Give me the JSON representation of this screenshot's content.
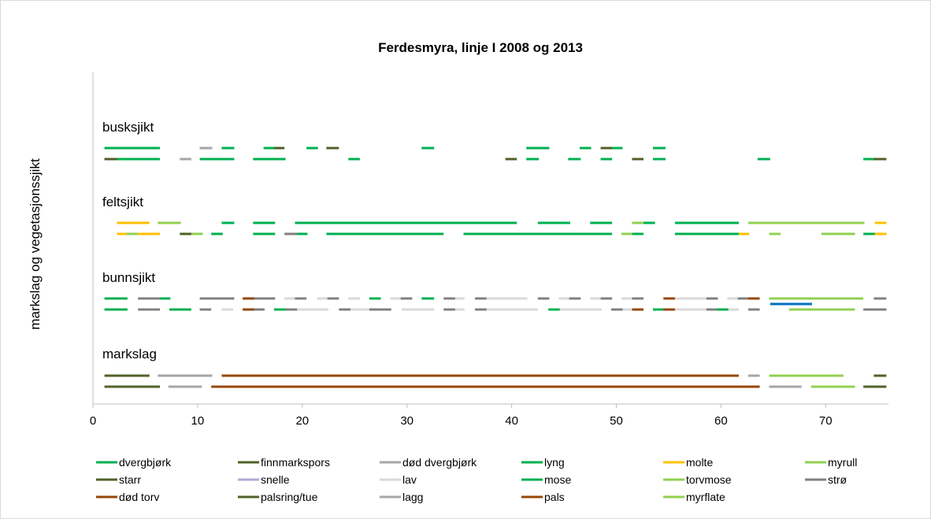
{
  "chart_data": {
    "type": "segments",
    "title": "Ferdesmyra, linje I 2008 og 2013",
    "ylabel": "markslag og vegetasjonssjikt",
    "groups": [
      "busksjikt",
      "feltsjikt",
      "bunnsjikt",
      "markslag"
    ],
    "xlim": [
      0,
      76
    ],
    "xticks": [
      0,
      10,
      20,
      30,
      40,
      50,
      60,
      70
    ],
    "series": [
      {
        "name": "dvergbjørk",
        "color": "#00b050",
        "segments": [
          [
            0,
            0,
            1.1,
            6.4
          ],
          [
            0,
            0,
            12.3,
            13.5
          ],
          [
            0,
            0,
            16.3,
            17.4
          ],
          [
            0,
            0,
            20.4,
            21.5
          ],
          [
            0,
            0,
            31.4,
            32.6
          ],
          [
            0,
            0,
            41.4,
            43.6
          ],
          [
            0,
            0,
            46.5,
            47.6
          ],
          [
            0,
            0,
            49.5,
            50.6
          ],
          [
            0,
            0,
            53.5,
            54.7
          ],
          [
            0,
            1,
            1.1,
            6.4
          ],
          [
            0,
            1,
            10.2,
            13.5
          ],
          [
            0,
            1,
            15.3,
            18.4
          ],
          [
            0,
            1,
            24.4,
            25.5
          ],
          [
            0,
            1,
            41.4,
            42.6
          ],
          [
            0,
            1,
            45.4,
            46.6
          ],
          [
            0,
            1,
            48.5,
            49.6
          ],
          [
            0,
            1,
            53.5,
            54.7
          ],
          [
            0,
            1,
            63.5,
            64.7
          ],
          [
            0,
            1,
            73.6,
            74.8
          ]
        ]
      },
      {
        "name": "finnmarkspors",
        "color": "#4f6228",
        "segments": [
          [
            0,
            0,
            17.3,
            18.3
          ],
          [
            0,
            0,
            22.3,
            23.5
          ],
          [
            0,
            0,
            48.5,
            49.6
          ],
          [
            0,
            1,
            1.1,
            2.3
          ],
          [
            0,
            1,
            39.4,
            40.5
          ],
          [
            0,
            1,
            51.5,
            52.6
          ],
          [
            0,
            1,
            74.6,
            75.8
          ]
        ]
      },
      {
        "name": "død dvergbjørk",
        "color": "#a6a6a6",
        "segments": [
          [
            0,
            0,
            10.2,
            11.4
          ],
          [
            0,
            1,
            8.3,
            9.4
          ]
        ]
      },
      {
        "name": "lyng",
        "color": "#00b050",
        "segments": [
          [
            1,
            0,
            12.3,
            13.5
          ],
          [
            1,
            0,
            15.3,
            17.4
          ],
          [
            1,
            0,
            19.3,
            40.5
          ],
          [
            1,
            0,
            42.5,
            45.6
          ],
          [
            1,
            0,
            47.5,
            49.6
          ],
          [
            1,
            0,
            52.6,
            53.7
          ],
          [
            1,
            0,
            55.6,
            61.7
          ],
          [
            1,
            1,
            11.3,
            12.4
          ],
          [
            1,
            1,
            15.3,
            17.4
          ],
          [
            1,
            1,
            19.3,
            20.5
          ],
          [
            1,
            1,
            22.3,
            33.5
          ],
          [
            1,
            1,
            35.4,
            49.6
          ],
          [
            1,
            1,
            51.5,
            52.6
          ],
          [
            1,
            1,
            55.6,
            61.7
          ],
          [
            1,
            1,
            73.6,
            75.8
          ]
        ]
      },
      {
        "name": "molte",
        "color": "#ffc000",
        "segments": [
          [
            1,
            0,
            2.3,
            5.4
          ],
          [
            1,
            0,
            74.7,
            75.8
          ],
          [
            1,
            1,
            2.3,
            6.4
          ],
          [
            1,
            1,
            61.7,
            62.7
          ],
          [
            1,
            1,
            74.7,
            75.8
          ]
        ]
      },
      {
        "name": "myrull",
        "color": "#92d050",
        "segments": [
          [
            1,
            0,
            6.2,
            8.4
          ],
          [
            1,
            0,
            51.5,
            52.6
          ],
          [
            1,
            0,
            62.6,
            73.7
          ],
          [
            1,
            1,
            3.2,
            4.3
          ],
          [
            1,
            1,
            9.4,
            10.5
          ],
          [
            1,
            1,
            50.5,
            51.5
          ],
          [
            1,
            1,
            64.6,
            65.7
          ],
          [
            1,
            1,
            69.6,
            72.8
          ]
        ]
      },
      {
        "name": "starr",
        "color": "#4f6228",
        "segments": [
          [
            1,
            1,
            8.3,
            9.4
          ]
        ]
      },
      {
        "name": "snelle",
        "color": "#b4a7d6",
        "segments": []
      },
      {
        "name": "lav",
        "color": "#d9d9d9",
        "segments": [
          [
            2,
            0,
            18.3,
            19.4
          ],
          [
            2,
            0,
            21.4,
            22.5
          ],
          [
            2,
            0,
            24.4,
            25.5
          ],
          [
            2,
            0,
            28.4,
            29.5
          ],
          [
            2,
            0,
            34.4,
            35.5
          ],
          [
            2,
            0,
            37.5,
            41.5
          ],
          [
            2,
            0,
            44.5,
            45.6
          ],
          [
            2,
            0,
            47.5,
            48.6
          ],
          [
            2,
            0,
            50.5,
            51.6
          ],
          [
            2,
            0,
            55.6,
            58.6
          ],
          [
            2,
            0,
            60.6,
            61.7
          ],
          [
            2,
            1,
            12.3,
            13.4
          ],
          [
            2,
            1,
            19.4,
            22.5
          ],
          [
            2,
            1,
            24.4,
            26.5
          ],
          [
            2,
            1,
            29.5,
            32.6
          ],
          [
            2,
            1,
            34.5,
            35.5
          ],
          [
            2,
            1,
            37.5,
            42.5
          ],
          [
            2,
            1,
            44.6,
            48.6
          ],
          [
            2,
            1,
            50.5,
            51.6
          ],
          [
            2,
            1,
            55.6,
            58.6
          ],
          [
            2,
            1,
            60.6,
            61.7
          ]
        ]
      },
      {
        "name": "mose",
        "color": "#00b050",
        "segments": [
          [
            2,
            0,
            1.1,
            3.3
          ],
          [
            2,
            0,
            5.3,
            7.4
          ],
          [
            2,
            0,
            26.4,
            27.5
          ],
          [
            2,
            0,
            31.4,
            32.6
          ],
          [
            2,
            1,
            1.1,
            3.3
          ],
          [
            2,
            1,
            7.3,
            9.4
          ],
          [
            2,
            1,
            17.3,
            18.4
          ],
          [
            2,
            1,
            43.5,
            44.6
          ],
          [
            2,
            1,
            53.5,
            54.6
          ],
          [
            2,
            1,
            59.6,
            60.7
          ],
          [
            2,
            1,
            74.6,
            75.8
          ]
        ]
      },
      {
        "name": "torvmose",
        "color": "#92d050",
        "segments": [
          [
            2,
            0,
            64.6,
            73.6
          ],
          [
            2,
            1,
            66.5,
            72.8
          ]
        ]
      },
      {
        "name": "strø",
        "color": "#808080",
        "segments": [
          [
            2,
            0,
            4.3,
            6.4
          ],
          [
            2,
            0,
            10.2,
            13.5
          ],
          [
            2,
            0,
            15.3,
            17.4
          ],
          [
            2,
            0,
            19.3,
            20.4
          ],
          [
            2,
            0,
            22.4,
            23.5
          ],
          [
            2,
            0,
            29.4,
            30.5
          ],
          [
            2,
            0,
            33.5,
            34.6
          ],
          [
            2,
            0,
            36.5,
            37.6
          ],
          [
            2,
            0,
            42.5,
            43.6
          ],
          [
            2,
            0,
            45.5,
            46.6
          ],
          [
            2,
            0,
            48.5,
            49.6
          ],
          [
            2,
            0,
            51.5,
            52.6
          ],
          [
            2,
            0,
            58.6,
            59.7
          ],
          [
            2,
            0,
            61.6,
            62.6
          ],
          [
            2,
            0,
            74.6,
            75.8
          ],
          [
            2,
            1,
            4.3,
            6.4
          ],
          [
            2,
            1,
            10.2,
            11.3
          ],
          [
            2,
            1,
            15.3,
            16.4
          ],
          [
            2,
            1,
            18.4,
            19.5
          ],
          [
            2,
            1,
            23.5,
            24.6
          ],
          [
            2,
            1,
            26.4,
            28.5
          ],
          [
            2,
            1,
            33.5,
            34.6
          ],
          [
            2,
            1,
            36.5,
            37.6
          ],
          [
            2,
            1,
            49.5,
            50.6
          ],
          [
            2,
            1,
            58.6,
            59.6
          ],
          [
            2,
            1,
            62.6,
            63.7
          ],
          [
            2,
            1,
            73.6,
            75.8
          ],
          [
            1,
            1,
            18.3,
            19.5
          ]
        ]
      },
      {
        "name": "død torv",
        "color": "#974706",
        "segments": [
          [
            2,
            0,
            14.3,
            15.4
          ],
          [
            2,
            0,
            54.5,
            55.6
          ],
          [
            2,
            0,
            62.6,
            63.7
          ],
          [
            2,
            1,
            14.3,
            15.4
          ],
          [
            2,
            1,
            51.5,
            52.6
          ],
          [
            2,
            1,
            54.5,
            55.6
          ]
        ]
      },
      {
        "name": "palsring/tue",
        "color": "#4f6228",
        "segments": [
          [
            3,
            0,
            1.1,
            5.4
          ],
          [
            3,
            0,
            74.6,
            75.8
          ],
          [
            3,
            1,
            1.1,
            6.4
          ],
          [
            3,
            1,
            73.6,
            75.8
          ]
        ]
      },
      {
        "name": "lagg",
        "color": "#a6a6a6",
        "segments": [
          [
            3,
            0,
            6.2,
            11.4
          ],
          [
            3,
            0,
            62.6,
            63.7
          ],
          [
            3,
            1,
            7.2,
            10.4
          ],
          [
            3,
            1,
            64.6,
            67.7
          ]
        ]
      },
      {
        "name": "pals",
        "color": "#974706",
        "segments": [
          [
            3,
            0,
            12.3,
            61.7
          ],
          [
            3,
            1,
            11.3,
            63.7
          ]
        ]
      },
      {
        "name": "myrflate",
        "color": "#92d050",
        "segments": [
          [
            3,
            0,
            64.6,
            71.7
          ],
          [
            3,
            1,
            68.6,
            72.8
          ]
        ]
      },
      {
        "color": "#0070c0",
        "segments": [
          [
            2,
            0.5,
            64.7,
            68.7
          ]
        ]
      }
    ]
  }
}
